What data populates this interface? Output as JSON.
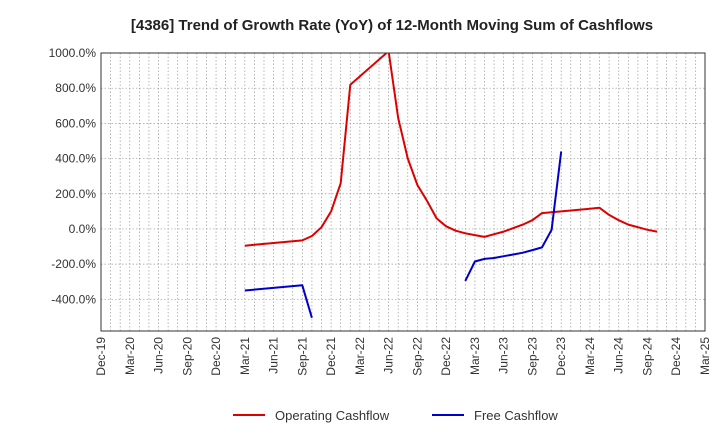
{
  "chart_data": {
    "type": "line",
    "title": "[4386]  Trend of Growth Rate (YoY) of 12-Month Moving Sum of Cashflows",
    "xlabel": "",
    "ylabel": "",
    "x_tick_labels": [
      "Dec-19",
      "Mar-20",
      "Jun-20",
      "Sep-20",
      "Dec-20",
      "Mar-21",
      "Jun-21",
      "Sep-21",
      "Dec-21",
      "Mar-22",
      "Jun-22",
      "Sep-22",
      "Dec-22",
      "Mar-23",
      "Jun-23",
      "Sep-23",
      "Dec-23",
      "Mar-24",
      "Jun-24",
      "Sep-24",
      "Dec-24",
      "Mar-25"
    ],
    "y_tick_labels": [
      "1000.0%",
      "800.0%",
      "600.0%",
      "400.0%",
      "200.0%",
      "0.0%",
      "-200.0%",
      "-400.0%"
    ],
    "y_ticks": [
      1000,
      800,
      600,
      400,
      200,
      0,
      -200,
      -400
    ],
    "ylim": [
      -580,
      1000
    ],
    "grid": true,
    "legend_position": "bottom",
    "series": [
      {
        "name": "Operating Cashflow",
        "color": "#dd0000",
        "points": [
          [
            "Mar-21",
            -95
          ],
          [
            "Apr-21",
            -90
          ],
          [
            "May-21",
            -85
          ],
          [
            "Jun-21",
            -80
          ],
          [
            "Jul-21",
            -75
          ],
          [
            "Aug-21",
            -70
          ],
          [
            "Sep-21",
            -65
          ],
          [
            "Oct-21",
            -40
          ],
          [
            "Nov-21",
            10
          ],
          [
            "Dec-21",
            100
          ],
          [
            "Jan-22",
            260
          ],
          [
            "Feb-22",
            820
          ],
          [
            "Jun-22",
            1010
          ],
          [
            "Jul-22",
            630
          ],
          [
            "Aug-22",
            400
          ],
          [
            "Sep-22",
            250
          ],
          [
            "Oct-22",
            160
          ],
          [
            "Nov-22",
            60
          ],
          [
            "Dec-22",
            15
          ],
          [
            "Jan-23",
            -10
          ],
          [
            "Feb-23",
            -25
          ],
          [
            "Mar-23",
            -35
          ],
          [
            "Apr-23",
            -45
          ],
          [
            "May-23",
            -30
          ],
          [
            "Jun-23",
            -15
          ],
          [
            "Jul-23",
            5
          ],
          [
            "Aug-23",
            25
          ],
          [
            "Sep-23",
            50
          ],
          [
            "Oct-23",
            90
          ],
          [
            "Nov-23",
            95
          ],
          [
            "Dec-23",
            100
          ],
          [
            "Jan-24",
            105
          ],
          [
            "Feb-24",
            110
          ],
          [
            "Mar-24",
            115
          ],
          [
            "Apr-24",
            120
          ],
          [
            "May-24",
            80
          ],
          [
            "Jun-24",
            50
          ],
          [
            "Jul-24",
            25
          ],
          [
            "Aug-24",
            10
          ],
          [
            "Sep-24",
            -5
          ],
          [
            "Oct-24",
            -15
          ]
        ]
      },
      {
        "name": "Free Cashflow",
        "color": "#0000cc",
        "points": [
          [
            "Mar-21",
            -350
          ],
          [
            "Sep-21",
            -320
          ],
          [
            "Oct-21",
            -505
          ],
          [
            "Feb-23",
            -295
          ],
          [
            "Mar-23",
            -185
          ],
          [
            "Apr-23",
            -170
          ],
          [
            "May-23",
            -165
          ],
          [
            "Jun-23",
            -155
          ],
          [
            "Jul-23",
            -145
          ],
          [
            "Aug-23",
            -135
          ],
          [
            "Sep-23",
            -120
          ],
          [
            "Oct-23",
            -105
          ],
          [
            "Nov-23",
            -5
          ],
          [
            "Dec-23",
            440
          ]
        ],
        "gaps_after": [
          "Oct-21"
        ]
      }
    ]
  }
}
